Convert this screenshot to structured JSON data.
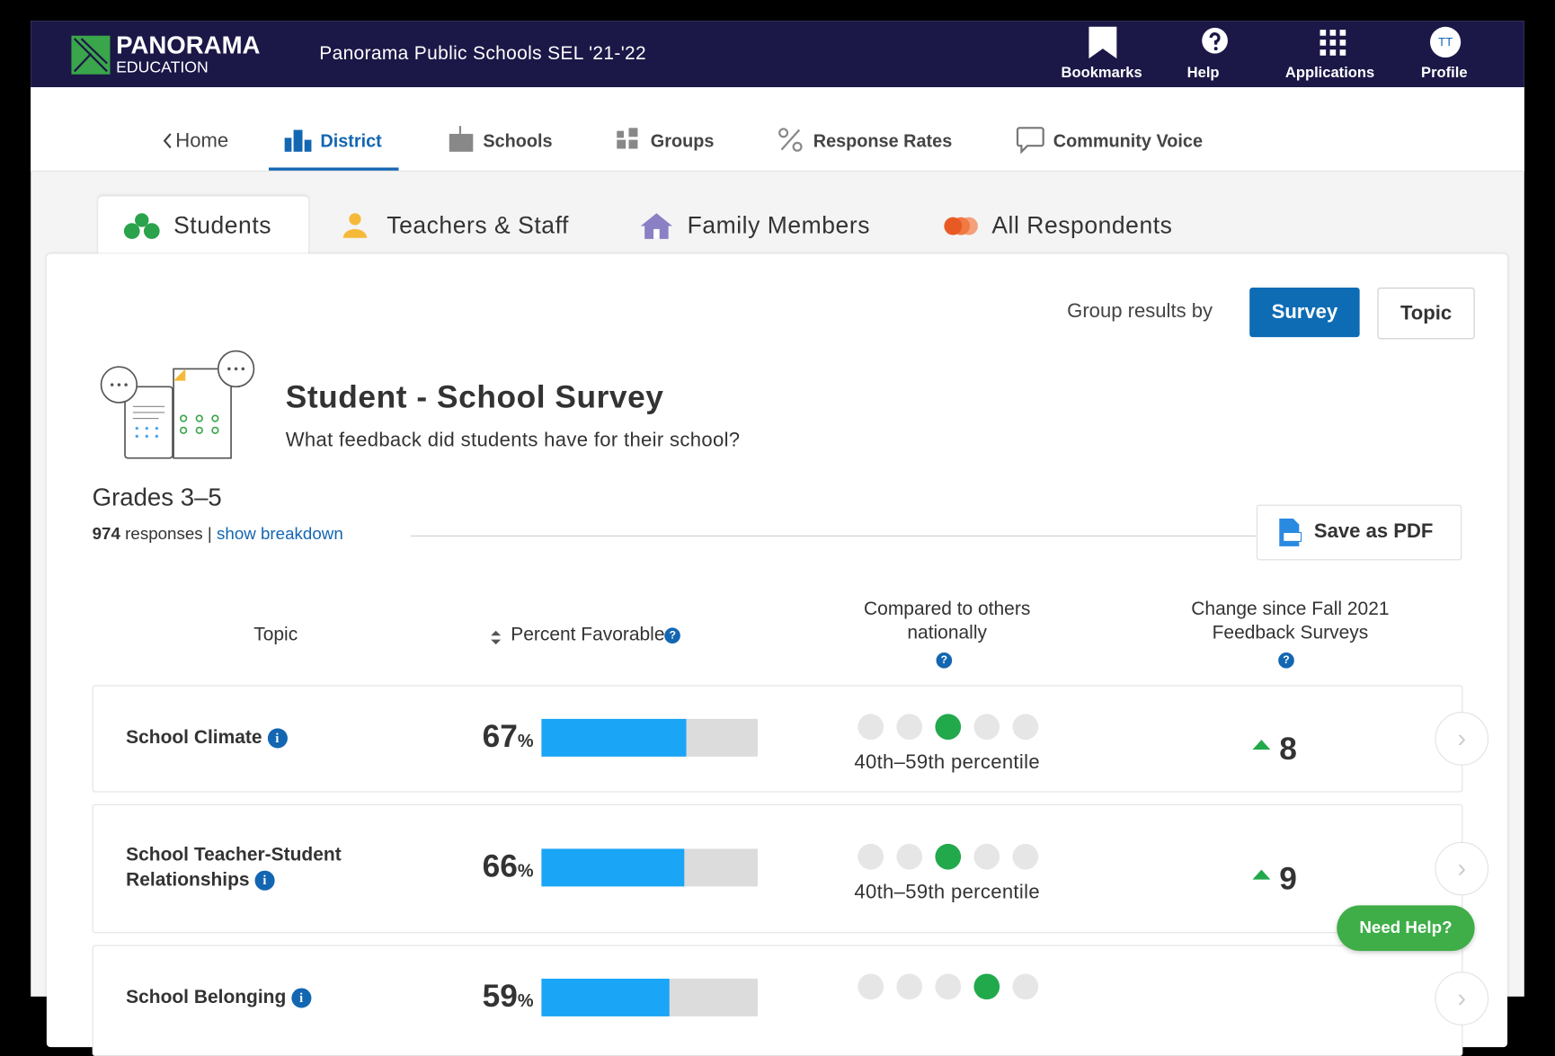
{
  "header": {
    "logo_name": "PANORAMA",
    "logo_sub": "EDUCATION",
    "title": "Panorama Public Schools SEL '21-'22",
    "menu": [
      "Bookmarks",
      "Help",
      "Applications",
      "Profile"
    ],
    "profile_initials": "TT"
  },
  "nav": {
    "back": "Home",
    "items": [
      "District",
      "Schools",
      "Groups",
      "Response Rates",
      "Community Voice"
    ]
  },
  "tabs": [
    "Students",
    "Teachers & Staff",
    "Family Members",
    "All Respondents"
  ],
  "group_by": {
    "label": "Group results by",
    "options": [
      "Survey",
      "Topic"
    ]
  },
  "survey": {
    "title": "Student - School Survey",
    "subtitle": "What feedback did students have for their school?",
    "grade": "Grades 3–5",
    "responses": 974,
    "responses_label": "responses",
    "separator": "|",
    "breakdown_link": "show breakdown",
    "save_pdf": "Save as PDF"
  },
  "table": {
    "headers": [
      "Topic",
      "Percent Favorable",
      "Compared to others nationally",
      "Change since Fall 2021 Feedback Surveys"
    ],
    "rows": [
      {
        "topic": "School Climate",
        "percent": 67,
        "unit": "%",
        "percentile_dot": 3,
        "percentile": "40th–59th percentile",
        "change": 8
      },
      {
        "topic": "School Teacher-Student Relationships",
        "percent": 66,
        "unit": "%",
        "percentile_dot": 3,
        "percentile": "40th–59th percentile",
        "change": 9
      },
      {
        "topic": "School Belonging",
        "percent": 59,
        "unit": "%",
        "percentile_dot": 4
      }
    ]
  },
  "help_button": "Need Help?"
}
